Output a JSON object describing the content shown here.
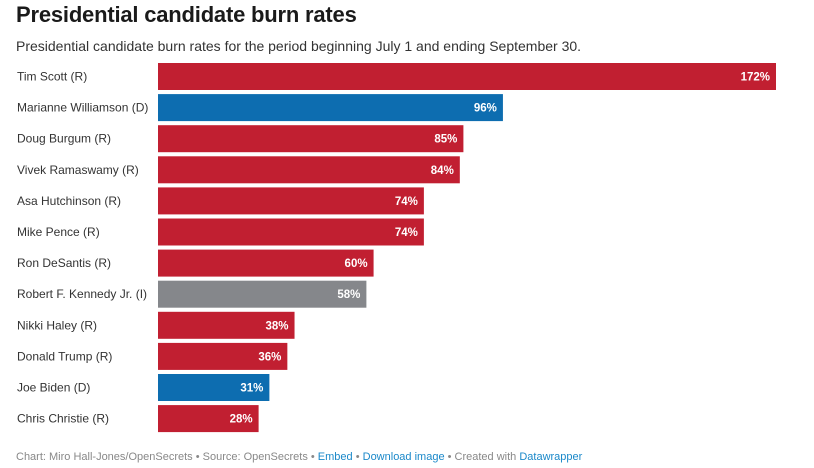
{
  "header": {
    "title": "Presidential candidate burn rates",
    "subtitle": "Presidential candidate burn rates for the period beginning July 1 and ending September 30."
  },
  "colors": {
    "R": "#c11f31",
    "D": "#0d6db0",
    "I": "#85878b"
  },
  "chart_data": {
    "type": "bar",
    "orientation": "horizontal",
    "title": "Presidential candidate burn rates",
    "subtitle": "Presidential candidate burn rates for the period beginning July 1 and ending September 30.",
    "xlabel": "",
    "ylabel": "",
    "unit": "%",
    "xlim": [
      0,
      172
    ],
    "grid": false,
    "categories": [
      "Tim Scott (R)",
      "Marianne Williamson (D)",
      "Doug Burgum (R)",
      "Vivek Ramaswamy (R)",
      "Asa Hutchinson (R)",
      "Mike Pence (R)",
      "Ron DeSantis (R)",
      "Robert F. Kennedy Jr. (I)",
      "Nikki Haley (R)",
      "Donald Trump (R)",
      "Joe Biden (D)",
      "Chris Christie (R)"
    ],
    "values": [
      172,
      96,
      85,
      84,
      74,
      74,
      60,
      58,
      38,
      36,
      31,
      28
    ],
    "party": [
      "R",
      "D",
      "R",
      "R",
      "R",
      "R",
      "R",
      "I",
      "R",
      "R",
      "D",
      "R"
    ],
    "value_labels": [
      "172%",
      "96%",
      "85%",
      "84%",
      "74%",
      "74%",
      "60%",
      "58%",
      "38%",
      "36%",
      "31%",
      "28%"
    ]
  },
  "footer": {
    "chart_credit": "Chart: Miro Hall-Jones/OpenSecrets",
    "separator": " • ",
    "source": "Source: OpenSecrets",
    "embed_link": "Embed",
    "download_link": "Download image",
    "created_with": "Created with ",
    "datawrapper_link": "Datawrapper"
  }
}
